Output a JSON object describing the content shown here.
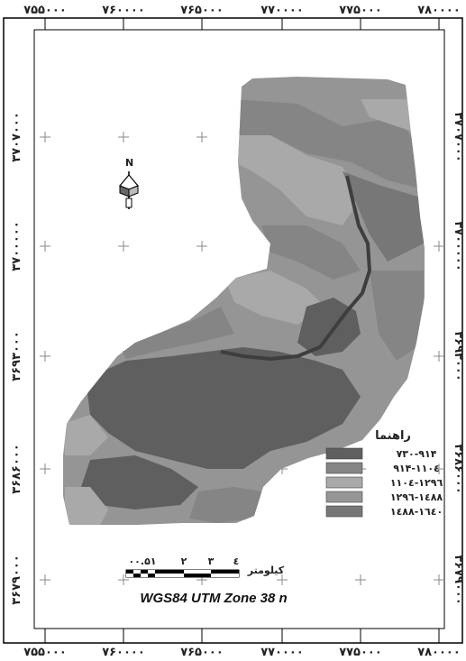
{
  "axes": {
    "x_ticks": [
      "۷۵۵۰۰۰",
      "۷۶۰۰۰۰",
      "۷۶۵۰۰۰",
      "۷۷۰۰۰۰",
      "۷۷۵۰۰۰",
      "۷۸۰۰۰۰"
    ],
    "y_ticks": [
      "۳۷۰۷۰۰۰",
      "۳۷۰۰۰۰۰",
      "۳۶۹۳۰۰۰",
      "۳۶۸۶۰۰۰",
      "۳۶۷۹۰۰۰"
    ]
  },
  "north_arrow": {
    "label": "N",
    "icon": "north-arrow-icon"
  },
  "legend": {
    "title": "راهنما",
    "items": [
      {
        "label": "۷۳۰-۹۱۴",
        "color": "#5f5f5f"
      },
      {
        "label": "۹۱۴-۱۱۰٤",
        "color": "#858585"
      },
      {
        "label": "۱۱۰٤-۱۲۹٦",
        "color": "#a9a9a9"
      },
      {
        "label": "۱۲۹٦-۱٤۸۸",
        "color": "#959595"
      },
      {
        "label": "۱٤۸۸-۱٦٤۰",
        "color": "#777777"
      }
    ]
  },
  "scale_bar": {
    "ticks": [
      "۰۰.۵۱",
      "۲",
      "۳",
      "٤"
    ],
    "unit": "کیلومتر"
  },
  "projection": "WGS84  UTM Zone 38 n",
  "colors": {
    "frame": "#000000",
    "class1": "#5f5f5f",
    "class2": "#858585",
    "class3": "#a9a9a9",
    "class4": "#959595",
    "class5": "#777777",
    "river": "#3e3e3e"
  }
}
